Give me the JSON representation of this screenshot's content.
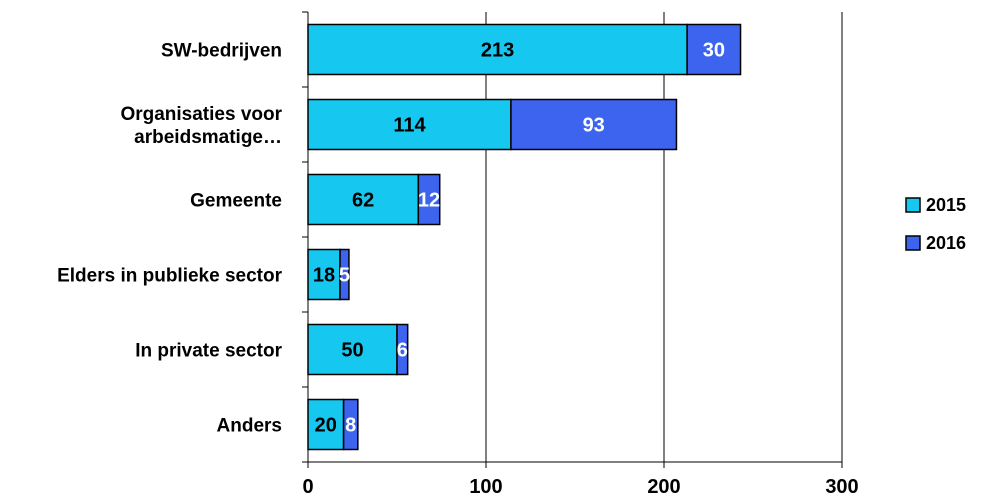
{
  "chart_data": {
    "type": "bar",
    "orientation": "horizontal",
    "stacked": true,
    "categories": [
      [
        "SW-bedrijven"
      ],
      [
        "Organisaties voor",
        "arbeidsmatige…"
      ],
      [
        "Gemeente"
      ],
      [
        "Elders in publieke sector"
      ],
      [
        "In private sector"
      ],
      [
        "Anders"
      ]
    ],
    "series": [
      {
        "name": "2015",
        "values": [
          213,
          114,
          62,
          18,
          50,
          20
        ],
        "color": "#16c8f0",
        "label_color": "#000000"
      },
      {
        "name": "2016",
        "values": [
          30,
          93,
          12,
          5,
          6,
          8
        ],
        "color": "#3c64ee",
        "label_color": "#ffffff"
      }
    ],
    "xlim": [
      0,
      300
    ],
    "xticks": [
      "0",
      "100",
      "200",
      "300"
    ],
    "grid": true,
    "legend": "right",
    "title": "",
    "xlabel": "",
    "ylabel": ""
  }
}
